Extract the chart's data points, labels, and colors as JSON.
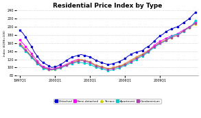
{
  "title": "Residential Price Index by Type",
  "ylabel": "Index (4Q98=100)",
  "ylim": [
    80,
    240
  ],
  "yticks": [
    80,
    100,
    120,
    140,
    160,
    180,
    200,
    220,
    240
  ],
  "xtick_labels": [
    "1997Q1",
    "2000Q1",
    "2003Q1",
    "2006Q1",
    "2009Q1"
  ],
  "xtick_pos": [
    0,
    12,
    24,
    36,
    48
  ],
  "bg_color": "#ffffff",
  "grid_color": "#bbbbbb",
  "series_names": [
    "Detached",
    "Semi-detached",
    "Terrace",
    "Apartment",
    "Condominium"
  ],
  "series_colors": [
    "#0000cc",
    "#ff00ff",
    "#cccc00",
    "#00cccc",
    "#aa44aa"
  ],
  "series_markers": [
    "s",
    "s",
    "^",
    "s",
    "s"
  ],
  "data": {
    "Detached": [
      192,
      185,
      175,
      163,
      152,
      138,
      128,
      118,
      112,
      108,
      104,
      100,
      102,
      104,
      108,
      112,
      118,
      122,
      126,
      128,
      130,
      132,
      130,
      128,
      126,
      122,
      118,
      115,
      112,
      110,
      108,
      108,
      110,
      112,
      115,
      118,
      122,
      128,
      132,
      136,
      138,
      140,
      142,
      148,
      152,
      158,
      165,
      172,
      178,
      182,
      188,
      192,
      195,
      198,
      200,
      205,
      210,
      215,
      220,
      228,
      235
    ],
    "Semi-detached": [
      168,
      160,
      152,
      143,
      135,
      125,
      116,
      108,
      102,
      100,
      98,
      96,
      98,
      100,
      102,
      105,
      108,
      112,
      115,
      118,
      120,
      120,
      118,
      116,
      114,
      110,
      106,
      104,
      102,
      100,
      98,
      98,
      100,
      102,
      104,
      106,
      110,
      114,
      118,
      122,
      126,
      130,
      133,
      138,
      142,
      148,
      154,
      160,
      164,
      168,
      172,
      175,
      178,
      180,
      183,
      188,
      192,
      196,
      200,
      205,
      210
    ],
    "Terrace": [
      160,
      153,
      145,
      137,
      128,
      120,
      112,
      105,
      100,
      98,
      96,
      94,
      96,
      98,
      100,
      103,
      107,
      110,
      113,
      116,
      118,
      120,
      118,
      116,
      114,
      110,
      106,
      104,
      102,
      100,
      98,
      98,
      100,
      102,
      104,
      106,
      110,
      114,
      118,
      122,
      126,
      130,
      133,
      137,
      141,
      146,
      152,
      157,
      161,
      165,
      168,
      171,
      174,
      177,
      180,
      185,
      190,
      194,
      198,
      203,
      207
    ],
    "Apartment": [
      155,
      148,
      140,
      133,
      125,
      118,
      110,
      104,
      98,
      96,
      95,
      94,
      96,
      97,
      99,
      102,
      105,
      108,
      110,
      112,
      113,
      112,
      111,
      110,
      108,
      104,
      101,
      99,
      97,
      95,
      93,
      93,
      95,
      97,
      99,
      102,
      105,
      108,
      112,
      116,
      120,
      125,
      128,
      133,
      138,
      144,
      150,
      154,
      160,
      162,
      167,
      172,
      177,
      181,
      182,
      184,
      189,
      194,
      199,
      204,
      215
    ],
    "Condominium": [
      158,
      150,
      143,
      135,
      127,
      120,
      112,
      105,
      100,
      98,
      96,
      95,
      97,
      98,
      100,
      103,
      106,
      109,
      112,
      114,
      116,
      117,
      116,
      114,
      112,
      108,
      104,
      102,
      100,
      98,
      96,
      96,
      98,
      100,
      102,
      104,
      107,
      111,
      115,
      119,
      123,
      127,
      131,
      135,
      140,
      146,
      151,
      156,
      160,
      163,
      167,
      171,
      174,
      177,
      179,
      184,
      190,
      195,
      199,
      204,
      208
    ]
  }
}
